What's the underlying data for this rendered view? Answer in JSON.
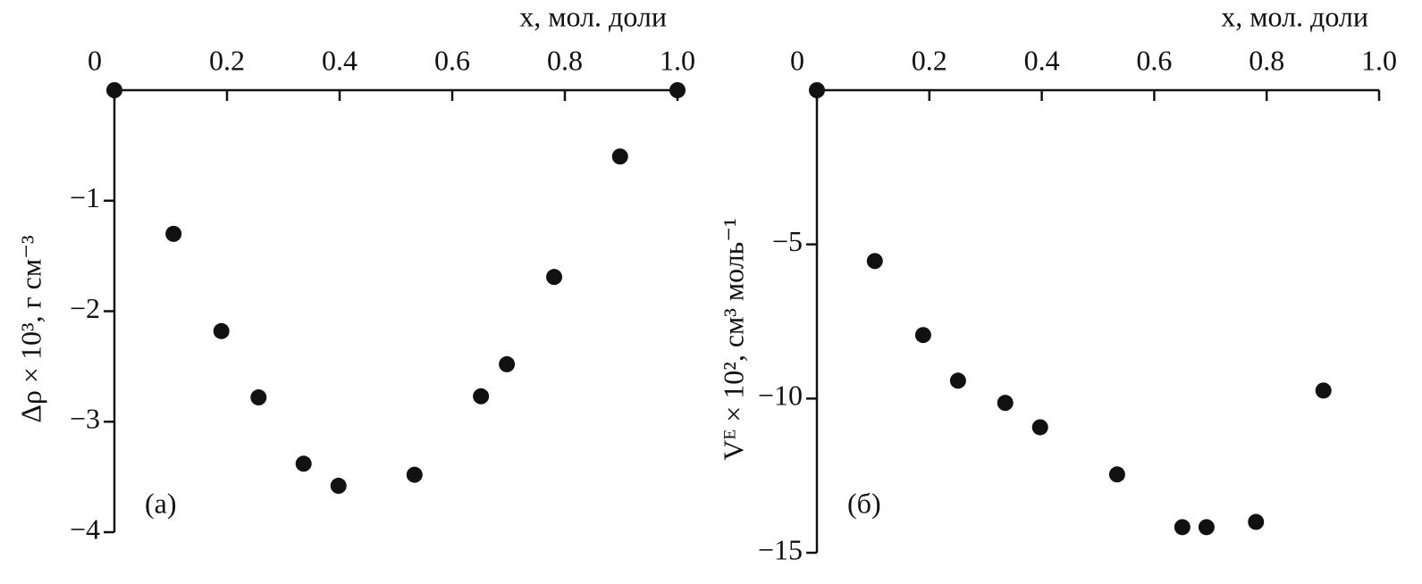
{
  "chart_data": [
    {
      "type": "scatter",
      "x_label": "x, мол. доли",
      "y_label": "Δρ × 10³, г см⁻³",
      "annotation": "(а)",
      "color": "#111111",
      "x": [
        0,
        0.105,
        0.19,
        0.256,
        0.336,
        0.398,
        0.533,
        0.651,
        0.697,
        0.781,
        0.898,
        1.0
      ],
      "values": [
        0,
        -1.3,
        -2.18,
        -2.78,
        -3.38,
        -3.58,
        -3.48,
        -2.77,
        -2.48,
        -1.69,
        -0.6,
        0
      ],
      "xlim": [
        0,
        1
      ],
      "ylim": [
        -4,
        0
      ],
      "xticks": [
        0,
        {
          "value": 0.2,
          "label": "0.2"
        },
        {
          "value": 0.4,
          "label": "0.4"
        },
        {
          "value": 0.6,
          "label": "0.6"
        },
        {
          "value": 0.8,
          "label": "0.8"
        },
        {
          "value": 1.0,
          "label": "1.0"
        }
      ],
      "yticks": [
        {
          "value": -1,
          "label": "−1"
        },
        {
          "value": -2,
          "label": "−2"
        },
        {
          "value": -3,
          "label": "−3"
        },
        {
          "value": -4,
          "label": "−4"
        }
      ]
    },
    {
      "type": "scatter",
      "x_label": "x, мол. доли",
      "y_label": "Vᴱ × 10², см³ моль⁻¹",
      "annotation": "(б)",
      "color": "#111111",
      "x": [
        0,
        0.103,
        0.189,
        0.251,
        0.335,
        0.397,
        0.534,
        0.65,
        0.693,
        0.781,
        0.901
      ],
      "values": [
        0,
        -5.54,
        -7.94,
        -9.42,
        -10.14,
        -10.93,
        -12.46,
        -14.17,
        -14.17,
        -14.0,
        -9.74
      ],
      "xlim": [
        0,
        1
      ],
      "ylim": [
        -15,
        0
      ],
      "xticks": [
        0,
        {
          "value": 0.2,
          "label": "0.2"
        },
        {
          "value": 0.4,
          "label": "0.4"
        },
        {
          "value": 0.6,
          "label": "0.6"
        },
        {
          "value": 0.8,
          "label": "0.8"
        },
        {
          "value": 1.0,
          "label": "1.0"
        }
      ],
      "yticks": [
        {
          "value": -5,
          "label": "−5"
        },
        {
          "value": -10,
          "label": "−10"
        },
        {
          "value": -15,
          "label": "−15"
        }
      ]
    }
  ]
}
